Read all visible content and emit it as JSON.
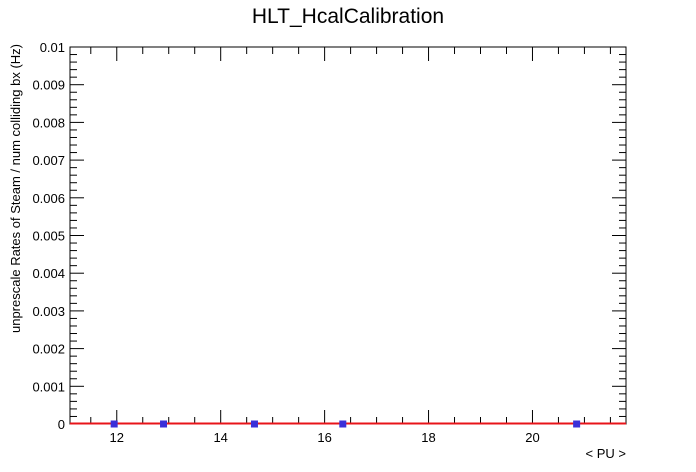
{
  "chart_data": {
    "type": "scatter",
    "title": "HLT_HcalCalibration",
    "xlabel": "< PU >",
    "ylabel": "unprescale Rates of Steam / num colliding bx (Hz)",
    "xlim": [
      11.1,
      21.8
    ],
    "ylim": [
      0,
      0.01
    ],
    "x_ticks": [
      12,
      14,
      16,
      18,
      20
    ],
    "x_tick_labels": [
      "12",
      "14",
      "16",
      "18",
      "20"
    ],
    "y_ticks": [
      0,
      0.001,
      0.002,
      0.003,
      0.004,
      0.005,
      0.006,
      0.007,
      0.008,
      0.009,
      0.01
    ],
    "y_tick_labels": [
      "0",
      "0.001",
      "0.002",
      "0.003",
      "0.004",
      "0.005",
      "0.006",
      "0.007",
      "0.008",
      "0.009",
      "0.01"
    ],
    "grid": false,
    "series": [
      {
        "marker_color": "#3b2fd8",
        "fit_color": "#e8141a",
        "x": [
          11.95,
          12.9,
          14.65,
          16.35,
          20.85
        ],
        "y": [
          0,
          0,
          0,
          0,
          0
        ],
        "fit": {
          "type": "linear",
          "slope": 0,
          "intercept": 0
        }
      }
    ]
  }
}
